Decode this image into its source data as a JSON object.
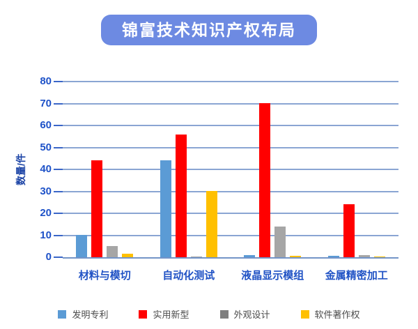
{
  "title": "锦富技术知识产权布局",
  "chart_data": {
    "type": "bar",
    "title": "锦富技术知识产权布局",
    "categories": [
      "材料与模切",
      "自动化测试",
      "液晶显示模组",
      "金属精密加工"
    ],
    "series": [
      {
        "name": "发明专利",
        "color": "#5B9BD5",
        "legend_color": "#5B9BD5",
        "values": [
          10,
          44,
          1,
          0.7
        ]
      },
      {
        "name": "实用新型",
        "color": "#FF0000",
        "legend_color": "#FF0000",
        "values": [
          44,
          56,
          70,
          24
        ]
      },
      {
        "name": "外观设计",
        "color": "#A6A6A6",
        "legend_color": "#7F7F7F",
        "values": [
          5,
          0.3,
          14,
          1
        ]
      },
      {
        "name": "软件著作权",
        "color": "#FFC000",
        "legend_color": "#FFC000",
        "values": [
          1.5,
          30,
          0.5,
          0.3
        ]
      }
    ],
    "xlabel": "",
    "ylabel": "数量/件",
    "ylim": [
      0,
      80
    ],
    "yticks": [
      0,
      10,
      20,
      30,
      40,
      50,
      60,
      70,
      80
    ],
    "grid": true,
    "legend_position": "bottom",
    "title_style": {
      "background": "#6d8ae2",
      "text_color": "#ffffff"
    }
  }
}
